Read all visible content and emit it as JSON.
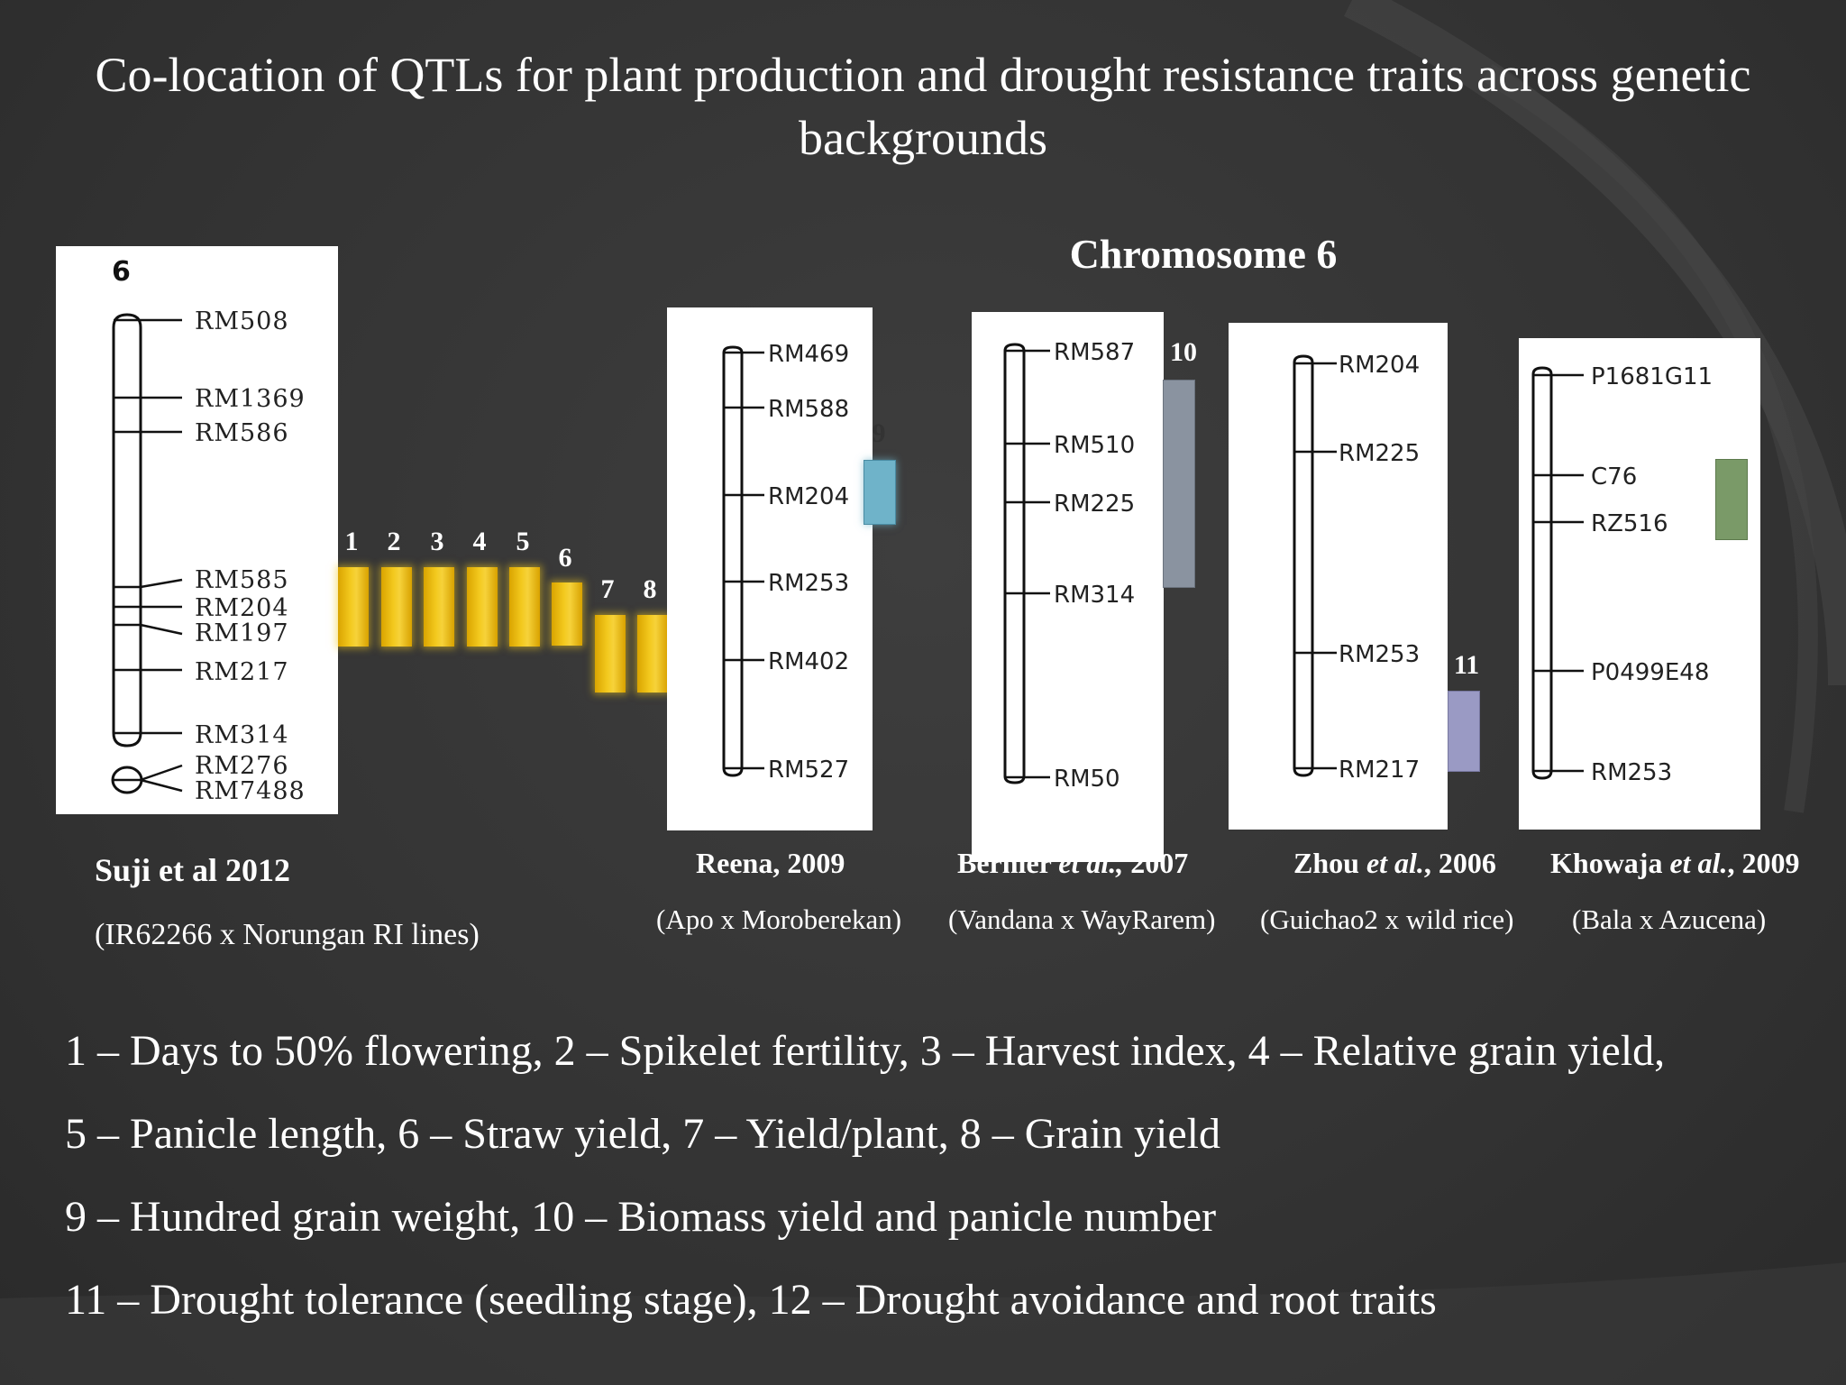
{
  "slide": {
    "title": "Co-location of QTLs for plant production and drought resistance traits across genetic backgrounds",
    "heading": "Chromosome 6"
  },
  "suji_panel": {
    "chromosome_label": "6",
    "markers": [
      "RM508",
      "RM1369",
      "RM586",
      "RM585",
      "RM204",
      "RM197",
      "RM217",
      "RM314",
      "RM276",
      "RM7488"
    ]
  },
  "qtl_bars": [
    {
      "num": "1",
      "color": "#f2c414"
    },
    {
      "num": "2",
      "color": "#f2c414"
    },
    {
      "num": "3",
      "color": "#f2c414"
    },
    {
      "num": "4",
      "color": "#f2c414"
    },
    {
      "num": "5",
      "color": "#f2c414"
    },
    {
      "num": "6",
      "color": "#f2c414"
    },
    {
      "num": "7",
      "color": "#f2c414"
    },
    {
      "num": "8",
      "color": "#f2c414"
    }
  ],
  "reena_panel": {
    "markers": [
      "RM469",
      "RM588",
      "RM204",
      "RM253",
      "RM402",
      "RM527"
    ],
    "qtl": {
      "num": "9",
      "color": "#6fb3c9"
    }
  },
  "bernier_panel": {
    "markers": [
      "RM587",
      "RM510",
      "RM225",
      "RM314",
      "RM50"
    ],
    "qtl": {
      "num": "10",
      "color": "#8a93a0"
    }
  },
  "zhou_panel": {
    "markers": [
      "RM204",
      "RM225",
      "RM253",
      "RM217"
    ],
    "qtl": {
      "num": "11",
      "color": "#9a9ac4"
    }
  },
  "khowaja_panel": {
    "markers": [
      "P1681G11",
      "C76",
      "RZ516",
      "P0499E48",
      "RM253"
    ],
    "qtl": {
      "color": "#7a9a68"
    }
  },
  "citations": {
    "suji": "Suji et al 2012",
    "suji_cross": "(IR62266 x Norungan RI lines)",
    "reena": "Reena, 2009",
    "reena_cross": "(Apo x Moroberekan)",
    "bernier_pre": "Bernier ",
    "bernier_it": "et al.,",
    "bernier_post": " 2007",
    "bernier_cross": "(Vandana x WayRarem)",
    "zhou_pre": "Zhou ",
    "zhou_it": "et al.",
    "zhou_post": ", 2006",
    "zhou_cross": "(Guichao2 x wild rice)",
    "khowaja_pre": "Khowaja ",
    "khowaja_it": "et al.",
    "khowaja_post": ", 2009",
    "khowaja_cross": "(Bala x Azucena)"
  },
  "legend": [
    "1 – Days to 50% flowering, 2 – Spikelet fertility, 3 – Harvest index, 4 – Relative grain yield,",
    "5 – Panicle length, 6 – Straw yield, 7 – Yield/plant, 8 – Grain yield",
    "9 – Hundred grain weight, 10 – Biomass yield and panicle number",
    "11 – Drought tolerance (seedling stage), 12 – Drought avoidance and root traits"
  ]
}
